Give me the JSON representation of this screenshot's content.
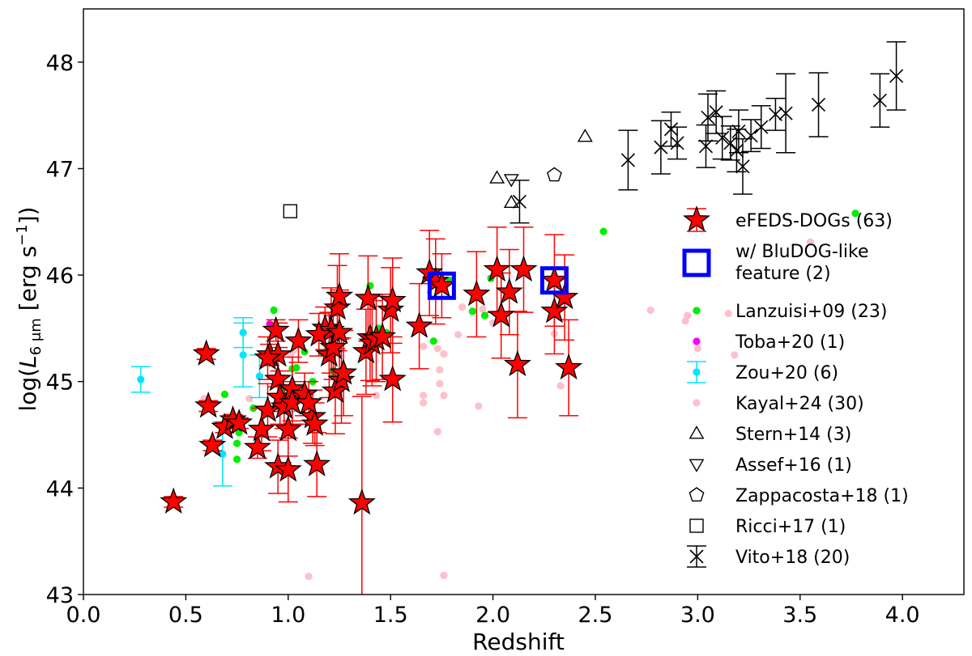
{
  "chart_data": {
    "type": "scatter",
    "title": "",
    "xlabel": "Redshift",
    "ylabel": "log(L6 μm [erg s−1])",
    "ylabel_parts": {
      "pre": "log(",
      "L": "L",
      "sub": "6 μm",
      "unit": " [erg s",
      "sup": "−1",
      "post": "])"
    },
    "xlim": [
      0.0,
      4.3
    ],
    "ylim": [
      43.0,
      48.5
    ],
    "xticks": [
      0.0,
      0.5,
      1.0,
      1.5,
      2.0,
      2.5,
      3.0,
      3.5,
      4.0
    ],
    "xtick_labels": [
      "0.0",
      "0.5",
      "1.0",
      "1.5",
      "2.0",
      "2.5",
      "3.0",
      "3.5",
      "4.0"
    ],
    "yticks": [
      43,
      44,
      45,
      46,
      47,
      48
    ],
    "ytick_labels": [
      "43",
      "44",
      "45",
      "46",
      "47",
      "48"
    ],
    "grid": false,
    "legend_position": "right",
    "series": [
      {
        "name": "eFEDS-DOGs (63)",
        "marker": "star",
        "color": "#ff0000",
        "edge": "#000000",
        "points": [
          {
            "x": 0.44,
            "y": 43.87,
            "e": 0.05
          },
          {
            "x": 0.6,
            "y": 45.26,
            "e": 0.05
          },
          {
            "x": 0.61,
            "y": 44.77,
            "e": 0.05
          },
          {
            "x": 0.63,
            "y": 44.4,
            "e": 0.05
          },
          {
            "x": 0.69,
            "y": 44.57,
            "e": 0.05
          },
          {
            "x": 0.73,
            "y": 44.64,
            "e": 0.05
          },
          {
            "x": 0.76,
            "y": 44.61,
            "e": 0.05
          },
          {
            "x": 0.85,
            "y": 44.38,
            "e": 0.1
          },
          {
            "x": 0.87,
            "y": 44.55,
            "e": 0.2
          },
          {
            "x": 0.9,
            "y": 44.73,
            "e": 0.25
          },
          {
            "x": 0.91,
            "y": 45.25,
            "e": 0.1
          },
          {
            "x": 0.94,
            "y": 45.48,
            "e": 0.1
          },
          {
            "x": 0.95,
            "y": 45.25,
            "e": 0.3
          },
          {
            "x": 0.95,
            "y": 44.2,
            "e": 0.25
          },
          {
            "x": 0.95,
            "y": 45.02,
            "e": 0.3
          },
          {
            "x": 0.96,
            "y": 44.85,
            "e": 0.25
          },
          {
            "x": 0.98,
            "y": 44.76,
            "e": 0.2
          },
          {
            "x": 1.0,
            "y": 44.55,
            "e": 0.25
          },
          {
            "x": 1.0,
            "y": 44.17,
            "e": 0.3
          },
          {
            "x": 1.02,
            "y": 44.93,
            "e": 0.3
          },
          {
            "x": 1.02,
            "y": 44.8,
            "e": 0.2
          },
          {
            "x": 1.05,
            "y": 45.38,
            "e": 0.2
          },
          {
            "x": 1.08,
            "y": 44.88,
            "e": 0.2
          },
          {
            "x": 1.12,
            "y": 44.67,
            "e": 0.25
          },
          {
            "x": 1.13,
            "y": 44.6,
            "e": 0.2
          },
          {
            "x": 1.14,
            "y": 44.22,
            "e": 0.3
          },
          {
            "x": 1.18,
            "y": 45.5,
            "e": 0.2
          },
          {
            "x": 1.2,
            "y": 45.25,
            "e": 0.4
          },
          {
            "x": 1.21,
            "y": 45.48,
            "e": 0.4
          },
          {
            "x": 1.22,
            "y": 45.32,
            "e": 0.3
          },
          {
            "x": 1.23,
            "y": 44.91,
            "e": 0.4
          },
          {
            "x": 1.24,
            "y": 45.69,
            "e": 0.4
          },
          {
            "x": 1.25,
            "y": 45.8,
            "e": 0.4
          },
          {
            "x": 1.25,
            "y": 45.46,
            "e": 0.4
          },
          {
            "x": 1.26,
            "y": 45.01,
            "e": 0.4
          },
          {
            "x": 1.27,
            "y": 45.08,
            "e": 0.4
          },
          {
            "x": 1.36,
            "y": 43.86,
            "e": 1.0
          },
          {
            "x": 1.38,
            "y": 45.28,
            "e": 0.4
          },
          {
            "x": 1.39,
            "y": 45.78,
            "e": 0.4
          },
          {
            "x": 1.4,
            "y": 45.41,
            "e": 0.4
          },
          {
            "x": 1.41,
            "y": 45.36,
            "e": 0.4
          },
          {
            "x": 1.43,
            "y": 45.4,
            "e": 0.4
          },
          {
            "x": 1.46,
            "y": 45.42,
            "e": 0.4
          },
          {
            "x": 1.5,
            "y": 45.67,
            "e": 0.4
          },
          {
            "x": 1.51,
            "y": 45.76,
            "e": 0.4
          },
          {
            "x": 1.51,
            "y": 45.02,
            "e": 0.4
          },
          {
            "x": 1.64,
            "y": 45.52,
            "e": 0.4
          },
          {
            "x": 1.69,
            "y": 46.02,
            "e": 0.4
          },
          {
            "x": 1.72,
            "y": 45.94,
            "e": 0.4
          },
          {
            "x": 1.75,
            "y": 45.9,
            "e": 0.3
          },
          {
            "x": 1.92,
            "y": 45.82,
            "e": 0.4
          },
          {
            "x": 2.02,
            "y": 46.05,
            "e": 0.4
          },
          {
            "x": 2.04,
            "y": 45.62,
            "e": 0.4
          },
          {
            "x": 2.08,
            "y": 45.84,
            "e": 0.4
          },
          {
            "x": 2.12,
            "y": 45.16,
            "e": 0.5
          },
          {
            "x": 2.15,
            "y": 46.05,
            "e": 0.4
          },
          {
            "x": 2.3,
            "y": 45.95,
            "e": 0.43
          },
          {
            "x": 2.3,
            "y": 45.66,
            "e": 0.4
          },
          {
            "x": 2.35,
            "y": 45.79,
            "e": 0.4
          },
          {
            "x": 2.37,
            "y": 45.13,
            "e": 0.45
          },
          {
            "x": 0.9,
            "y": 45.22,
            "e": 0.2
          },
          {
            "x": 1.15,
            "y": 45.44,
            "e": 0.2
          },
          {
            "x": 1.1,
            "y": 44.8,
            "e": 0.2
          }
        ]
      },
      {
        "name": "w/ BluDOG-like feature (2)",
        "name_lines": [
          "w/ BluDOG-like",
          " feature (2)"
        ],
        "marker": "open-square-thick",
        "color": "#0000ff",
        "points": [
          {
            "x": 1.75,
            "y": 45.9
          },
          {
            "x": 2.3,
            "y": 45.95
          }
        ]
      },
      {
        "name": "Lanzuisi+09 (23)",
        "marker": "dot",
        "color": "#00ee00",
        "points": [
          {
            "x": 0.69,
            "y": 44.88
          },
          {
            "x": 0.75,
            "y": 44.42
          },
          {
            "x": 0.75,
            "y": 44.27
          },
          {
            "x": 0.76,
            "y": 44.52
          },
          {
            "x": 0.83,
            "y": 44.75
          },
          {
            "x": 0.93,
            "y": 45.67
          },
          {
            "x": 1.02,
            "y": 45.12
          },
          {
            "x": 1.04,
            "y": 45.13
          },
          {
            "x": 1.08,
            "y": 45.28
          },
          {
            "x": 1.17,
            "y": 45.27
          },
          {
            "x": 1.4,
            "y": 45.9
          },
          {
            "x": 1.44,
            "y": 45.5
          },
          {
            "x": 1.48,
            "y": 45.46
          },
          {
            "x": 1.71,
            "y": 45.38
          },
          {
            "x": 1.79,
            "y": 45.95
          },
          {
            "x": 1.9,
            "y": 45.66
          },
          {
            "x": 1.96,
            "y": 45.62
          },
          {
            "x": 1.99,
            "y": 45.97
          },
          {
            "x": 2.54,
            "y": 46.41
          },
          {
            "x": 3.77,
            "y": 46.58
          },
          {
            "x": 1.22,
            "y": 45.1
          },
          {
            "x": 0.97,
            "y": 44.9
          },
          {
            "x": 1.12,
            "y": 45.0
          }
        ]
      },
      {
        "name": "Toba+20 (1)",
        "marker": "dot",
        "color": "#ff00ff",
        "points": [
          {
            "x": 0.91,
            "y": 45.54
          }
        ]
      },
      {
        "name": "Zou+20 (6)",
        "marker": "dot-errorbar",
        "color": "#00e5ff",
        "points": [
          {
            "x": 0.28,
            "y": 45.02,
            "e": 0.12
          },
          {
            "x": 0.68,
            "y": 44.32,
            "e": 0.3
          },
          {
            "x": 0.78,
            "y": 45.46,
            "e": 0.14
          },
          {
            "x": 0.78,
            "y": 45.25,
            "e": 0.3
          },
          {
            "x": 0.86,
            "y": 45.05,
            "e": 0.2
          },
          {
            "x": 1.03,
            "y": 44.82,
            "e": 0.1
          }
        ]
      },
      {
        "name": "Kayal+24 (30)",
        "marker": "dot",
        "color": "#ffc0cb",
        "points": [
          {
            "x": 0.59,
            "y": 44.84
          },
          {
            "x": 0.81,
            "y": 44.84
          },
          {
            "x": 1.01,
            "y": 45.25
          },
          {
            "x": 1.03,
            "y": 45.3
          },
          {
            "x": 1.1,
            "y": 43.17
          },
          {
            "x": 1.43,
            "y": 44.87
          },
          {
            "x": 1.66,
            "y": 44.87
          },
          {
            "x": 1.66,
            "y": 44.8
          },
          {
            "x": 1.66,
            "y": 45.33
          },
          {
            "x": 1.73,
            "y": 45.31
          },
          {
            "x": 1.74,
            "y": 45.11
          },
          {
            "x": 1.74,
            "y": 44.98
          },
          {
            "x": 1.73,
            "y": 44.53
          },
          {
            "x": 1.76,
            "y": 45.26
          },
          {
            "x": 1.76,
            "y": 44.87
          },
          {
            "x": 1.76,
            "y": 43.18
          },
          {
            "x": 1.83,
            "y": 45.44
          },
          {
            "x": 1.85,
            "y": 45.7
          },
          {
            "x": 1.93,
            "y": 44.77
          },
          {
            "x": 1.95,
            "y": 45.68
          },
          {
            "x": 2.3,
            "y": 45.45
          },
          {
            "x": 2.33,
            "y": 44.96
          },
          {
            "x": 2.77,
            "y": 45.67
          },
          {
            "x": 2.94,
            "y": 45.57
          },
          {
            "x": 3.0,
            "y": 45.31
          },
          {
            "x": 3.15,
            "y": 45.64
          },
          {
            "x": 3.18,
            "y": 45.25
          },
          {
            "x": 3.55,
            "y": 46.31
          },
          {
            "x": 2.95,
            "y": 45.62
          },
          {
            "x": 2.0,
            "y": 45.55
          }
        ]
      },
      {
        "name": "Stern+14 (3)",
        "marker": "open-triangle-up",
        "color": "#000000",
        "points": [
          {
            "x": 2.02,
            "y": 46.91
          },
          {
            "x": 2.09,
            "y": 46.68
          },
          {
            "x": 2.45,
            "y": 47.3
          }
        ]
      },
      {
        "name": "Assef+16 (1)",
        "marker": "open-triangle-down",
        "color": "#000000",
        "points": [
          {
            "x": 2.09,
            "y": 46.9
          }
        ]
      },
      {
        "name": "Zappacosta+18 (1)",
        "marker": "open-pentagon",
        "color": "#000000",
        "points": [
          {
            "x": 2.3,
            "y": 46.94
          }
        ]
      },
      {
        "name": "Ricci+17 (1)",
        "marker": "open-square",
        "color": "#000000",
        "points": [
          {
            "x": 1.01,
            "y": 46.6
          }
        ]
      },
      {
        "name": "Vito+18 (20)",
        "marker": "x-errorbar",
        "color": "#000000",
        "points": [
          {
            "x": 2.13,
            "y": 46.69,
            "e": 0.2
          },
          {
            "x": 2.66,
            "y": 47.08,
            "e": 0.28
          },
          {
            "x": 2.82,
            "y": 47.2,
            "e": 0.25
          },
          {
            "x": 2.87,
            "y": 47.37,
            "e": 0.16
          },
          {
            "x": 2.9,
            "y": 47.24,
            "e": 0.15
          },
          {
            "x": 3.04,
            "y": 47.21,
            "e": 0.2
          },
          {
            "x": 3.05,
            "y": 47.48,
            "e": 0.22
          },
          {
            "x": 3.09,
            "y": 47.53,
            "e": 0.2
          },
          {
            "x": 3.12,
            "y": 47.29,
            "e": 0.2
          },
          {
            "x": 3.16,
            "y": 47.24,
            "e": 0.16
          },
          {
            "x": 3.19,
            "y": 47.17,
            "e": 0.2
          },
          {
            "x": 3.22,
            "y": 47.02,
            "e": 0.26
          },
          {
            "x": 3.26,
            "y": 47.31,
            "e": 0.15
          },
          {
            "x": 3.31,
            "y": 47.39,
            "e": 0.2
          },
          {
            "x": 3.38,
            "y": 47.51,
            "e": 0.15
          },
          {
            "x": 3.43,
            "y": 47.52,
            "e": 0.37
          },
          {
            "x": 3.59,
            "y": 47.6,
            "e": 0.3
          },
          {
            "x": 3.89,
            "y": 47.64,
            "e": 0.25
          },
          {
            "x": 3.97,
            "y": 47.87,
            "e": 0.32
          },
          {
            "x": 3.2,
            "y": 47.35,
            "e": 0.2
          }
        ]
      }
    ]
  }
}
